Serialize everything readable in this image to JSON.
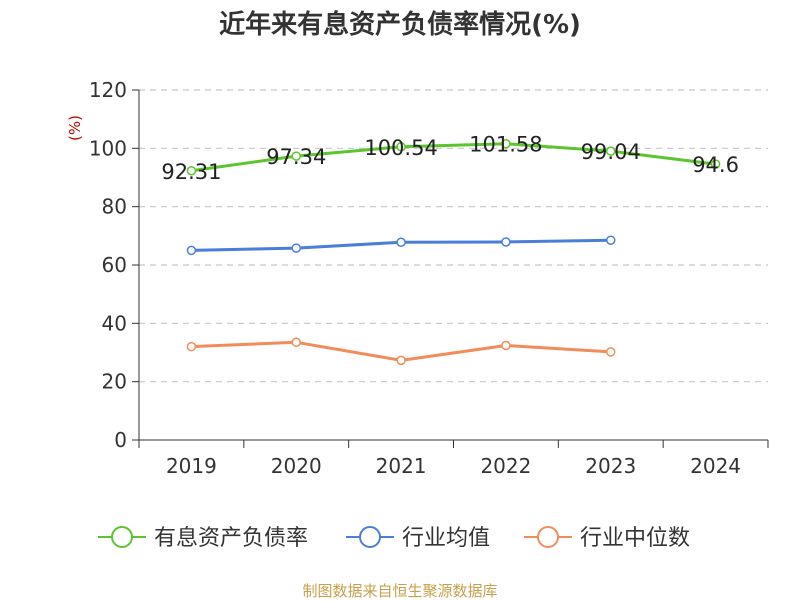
{
  "source_note": "制图数据来自恒生聚源数据库",
  "chart_data": {
    "type": "line",
    "title": "近年来有息资产负债率情况(%)",
    "ylabel": "(%)",
    "xlabel": "",
    "categories": [
      "2019",
      "2020",
      "2021",
      "2022",
      "2023",
      "2024"
    ],
    "ylim": [
      0,
      120
    ],
    "yticks": [
      0,
      20,
      40,
      60,
      80,
      100,
      120
    ],
    "grid": true,
    "legend_position": "bottom",
    "series": [
      {
        "name": "有息资产负债率",
        "color": "#5cc52e",
        "values": [
          92.31,
          97.34,
          100.54,
          101.58,
          99.04,
          94.6
        ],
        "labels": [
          "92.31",
          "97.34",
          "100.54",
          "101.58",
          "99.04",
          "94.6"
        ]
      },
      {
        "name": "行业均值",
        "color": "#4a7fd9",
        "values": [
          65.0,
          65.8,
          67.8,
          67.9,
          68.5,
          null
        ]
      },
      {
        "name": "行业中位数",
        "color": "#f28c5a",
        "values": [
          32.0,
          33.5,
          27.3,
          32.4,
          30.2,
          null
        ]
      }
    ]
  }
}
